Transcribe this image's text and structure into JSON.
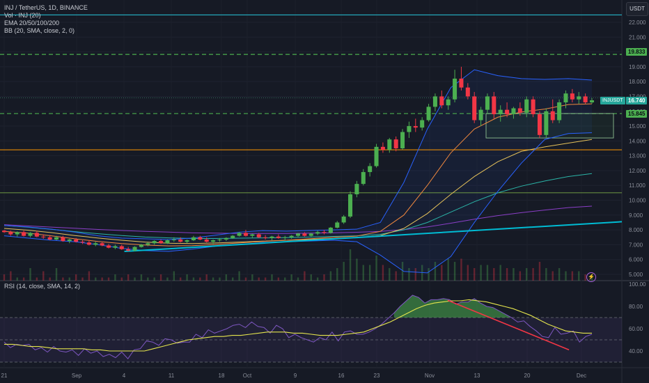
{
  "header": {
    "title": "INJ / TetherUS, 1D, BINANCE",
    "indicators": [
      "Vol · INJ (20)",
      "EMA 20/50/100/200",
      "BB (20, SMA, close, 2, 0)"
    ],
    "rsi_label": "RSI (14, close, SMA, 14, 2)",
    "currency": "USDT"
  },
  "price_tags": {
    "resistance_top": "19.833",
    "current_symbol": "INJUSDT",
    "current_price": "16.740",
    "support": "15.845"
  },
  "colors": {
    "background": "#161a25",
    "up": "#4caf50",
    "down": "#f23645",
    "ema20": "#f0883e",
    "ema50": "#e6c25a",
    "ema100": "#2bb5a8",
    "ema200": "#8b3fc8",
    "trendline": "#00bcd4",
    "bb": "#2962ff",
    "rsi": "#7e57c2",
    "rsi_ma": "#e6e64d",
    "rsi_trend": "#f23645",
    "level_green": "#4caf50",
    "level_orange": "#ff9800"
  },
  "chart_data": [
    {
      "type": "candlestick",
      "title": "INJ / TetherUS, 1D, BINANCE",
      "yaxis_ticks": [
        "22.000",
        "21.000",
        "20.000",
        "19.000",
        "18.000",
        "17.000",
        "16.000",
        "15.000",
        "14.000",
        "13.000",
        "12.000",
        "11.000",
        "10.000",
        "9.000",
        "8.000",
        "7.000",
        "6.000",
        "5.000"
      ],
      "xaxis_ticks": [
        "21",
        "Sep",
        "4",
        "11",
        "18",
        "Oct",
        "9",
        "16",
        "23",
        "Nov",
        "13",
        "20",
        "Dec"
      ],
      "ylim": [
        5,
        22.8
      ],
      "horizontal_levels": [
        19.833,
        15.845,
        13.4,
        10.5,
        22.5
      ],
      "candles": [
        [
          7.95,
          8.0,
          7.8,
          7.85
        ],
        [
          7.85,
          7.95,
          7.6,
          7.7
        ],
        [
          7.7,
          7.9,
          7.55,
          7.85
        ],
        [
          7.85,
          7.95,
          7.55,
          7.6
        ],
        [
          7.6,
          7.85,
          7.5,
          7.8
        ],
        [
          7.8,
          7.95,
          7.5,
          7.55
        ],
        [
          7.55,
          7.7,
          7.4,
          7.5
        ],
        [
          7.5,
          7.65,
          7.3,
          7.35
        ],
        [
          7.35,
          7.6,
          7.3,
          7.5
        ],
        [
          7.5,
          7.6,
          7.2,
          7.25
        ],
        [
          7.25,
          7.4,
          7.1,
          7.35
        ],
        [
          7.35,
          7.45,
          7.15,
          7.2
        ],
        [
          7.2,
          7.3,
          7.05,
          7.15
        ],
        [
          7.15,
          7.3,
          6.95,
          7.0
        ],
        [
          7.0,
          7.2,
          6.9,
          7.1
        ],
        [
          7.1,
          7.2,
          6.9,
          6.95
        ],
        [
          6.95,
          7.05,
          6.75,
          6.8
        ],
        [
          6.8,
          7.0,
          6.7,
          6.9
        ],
        [
          6.9,
          7.0,
          6.65,
          6.7
        ],
        [
          6.7,
          6.85,
          6.55,
          6.6
        ],
        [
          6.6,
          6.9,
          6.55,
          6.85
        ],
        [
          6.85,
          7.05,
          6.8,
          7.0
        ],
        [
          7.0,
          7.15,
          6.9,
          7.1
        ],
        [
          7.1,
          7.3,
          7.0,
          7.25
        ],
        [
          7.25,
          7.35,
          7.05,
          7.1
        ],
        [
          7.1,
          7.35,
          7.05,
          7.3
        ],
        [
          7.3,
          7.5,
          7.2,
          7.35
        ],
        [
          7.35,
          7.5,
          7.15,
          7.2
        ],
        [
          7.2,
          7.35,
          7.1,
          7.3
        ],
        [
          7.3,
          7.6,
          7.25,
          7.5
        ],
        [
          7.5,
          7.6,
          7.3,
          7.35
        ],
        [
          7.35,
          7.5,
          7.15,
          7.2
        ],
        [
          7.2,
          7.35,
          7.05,
          7.3
        ],
        [
          7.3,
          7.45,
          7.2,
          7.35
        ],
        [
          7.35,
          7.5,
          7.25,
          7.45
        ],
        [
          7.45,
          7.65,
          7.4,
          7.6
        ],
        [
          7.6,
          7.85,
          7.55,
          7.8
        ],
        [
          7.8,
          8.0,
          7.55,
          7.6
        ],
        [
          7.6,
          7.75,
          7.45,
          7.7
        ],
        [
          7.7,
          7.8,
          7.45,
          7.5
        ],
        [
          7.5,
          7.65,
          7.35,
          7.45
        ],
        [
          7.45,
          7.6,
          7.3,
          7.55
        ],
        [
          7.55,
          7.7,
          7.4,
          7.45
        ],
        [
          7.45,
          7.6,
          7.3,
          7.5
        ],
        [
          7.5,
          7.65,
          7.4,
          7.6
        ],
        [
          7.6,
          7.8,
          7.5,
          7.75
        ],
        [
          7.75,
          7.85,
          7.55,
          7.6
        ],
        [
          7.6,
          7.8,
          7.55,
          7.75
        ],
        [
          7.75,
          7.95,
          7.65,
          7.85
        ],
        [
          7.85,
          8.0,
          7.7,
          7.8
        ],
        [
          7.8,
          8.2,
          7.75,
          8.15
        ],
        [
          8.15,
          8.6,
          8.1,
          8.5
        ],
        [
          8.5,
          9.0,
          8.4,
          8.9
        ],
        [
          8.9,
          10.6,
          8.8,
          10.4
        ],
        [
          10.4,
          11.3,
          10.2,
          11.1
        ],
        [
          11.1,
          12.1,
          11.0,
          11.9
        ],
        [
          11.9,
          12.5,
          11.6,
          12.3
        ],
        [
          12.3,
          13.8,
          12.2,
          13.6
        ],
        [
          13.6,
          13.9,
          13.2,
          13.4
        ],
        [
          13.4,
          14.2,
          13.2,
          14.1
        ],
        [
          14.1,
          14.3,
          13.3,
          13.5
        ],
        [
          13.5,
          14.8,
          13.4,
          14.6
        ],
        [
          14.6,
          15.3,
          14.2,
          15.0
        ],
        [
          15.0,
          15.5,
          14.6,
          14.9
        ],
        [
          14.9,
          15.6,
          14.7,
          15.4
        ],
        [
          15.4,
          16.5,
          15.3,
          16.3
        ],
        [
          16.3,
          17.2,
          16.0,
          17.0
        ],
        [
          17.0,
          17.4,
          16.2,
          16.4
        ],
        [
          16.4,
          17.0,
          16.1,
          16.8
        ],
        [
          16.8,
          18.8,
          16.6,
          18.2
        ],
        [
          18.2,
          19.0,
          17.4,
          17.6
        ],
        [
          17.6,
          17.9,
          16.8,
          17.0
        ],
        [
          17.0,
          17.3,
          15.2,
          15.4
        ],
        [
          15.4,
          16.3,
          15.0,
          16.1
        ],
        [
          16.1,
          17.2,
          15.8,
          17.0
        ],
        [
          17.0,
          17.3,
          15.5,
          15.8
        ],
        [
          15.8,
          16.4,
          15.3,
          16.1
        ],
        [
          16.1,
          16.6,
          15.6,
          15.8
        ],
        [
          15.8,
          16.3,
          15.5,
          16.2
        ],
        [
          16.2,
          16.6,
          15.7,
          15.9
        ],
        [
          15.9,
          17.0,
          15.6,
          16.8
        ],
        [
          16.8,
          17.0,
          15.6,
          15.8
        ],
        [
          15.8,
          16.0,
          14.2,
          14.4
        ],
        [
          14.4,
          16.2,
          14.2,
          16.0
        ],
        [
          16.0,
          16.8,
          15.2,
          15.4
        ],
        [
          15.4,
          16.8,
          15.2,
          16.6
        ],
        [
          16.6,
          17.4,
          16.2,
          17.2
        ],
        [
          17.2,
          17.5,
          16.6,
          16.8
        ],
        [
          16.8,
          17.3,
          16.5,
          17.0
        ],
        [
          17.0,
          17.2,
          16.5,
          16.6
        ],
        [
          16.6,
          16.9,
          16.5,
          16.74
        ]
      ],
      "ema20": [
        7.9,
        7.78,
        7.6,
        7.4,
        7.22,
        7.08,
        6.98,
        6.92,
        6.94,
        7.02,
        7.12,
        7.22,
        7.3,
        7.4,
        7.5,
        7.58,
        7.9,
        9.0,
        11.0,
        13.2,
        14.8,
        15.6,
        15.95,
        16.15,
        16.45,
        16.5
      ],
      "ema50": [
        8.1,
        7.98,
        7.82,
        7.62,
        7.45,
        7.3,
        7.18,
        7.1,
        7.08,
        7.12,
        7.18,
        7.24,
        7.3,
        7.36,
        7.42,
        7.48,
        7.62,
        8.1,
        9.1,
        10.4,
        11.6,
        12.6,
        13.3,
        13.6,
        13.85,
        14.1
      ],
      "ema100": [
        8.3,
        8.18,
        8.04,
        7.88,
        7.74,
        7.62,
        7.52,
        7.46,
        7.42,
        7.42,
        7.44,
        7.46,
        7.48,
        7.52,
        7.56,
        7.6,
        7.7,
        8.0,
        8.5,
        9.2,
        9.9,
        10.5,
        10.95,
        11.3,
        11.6,
        11.8
      ],
      "ema200": [
        8.35,
        8.27,
        8.19,
        8.11,
        8.03,
        7.96,
        7.9,
        7.85,
        7.8,
        7.78,
        7.76,
        7.76,
        7.76,
        7.78,
        7.8,
        7.84,
        7.9,
        8.02,
        8.2,
        8.45,
        8.72,
        8.96,
        9.16,
        9.34,
        9.5,
        9.6
      ],
      "bb_upper": [
        8.3,
        8.2,
        8.05,
        7.85,
        7.6,
        7.45,
        7.4,
        7.35,
        7.45,
        7.65,
        7.85,
        7.95,
        7.92,
        7.96,
        8.0,
        8.05,
        8.5,
        11.2,
        14.8,
        17.6,
        18.8,
        18.4,
        18.2,
        18.15,
        18.2,
        18.1
      ],
      "bb_lower": [
        7.6,
        7.45,
        7.3,
        7.2,
        7.0,
        6.75,
        6.6,
        6.55,
        6.7,
        6.9,
        7.0,
        7.15,
        7.2,
        7.25,
        7.3,
        7.2,
        6.3,
        5.2,
        5.1,
        6.2,
        8.5,
        10.6,
        12.5,
        14.1,
        14.5,
        14.55
      ],
      "trendline": [
        [
          0.2,
          6.55
        ],
        [
          1.0,
          8.55
        ]
      ],
      "volume": [
        2,
        3,
        1,
        1,
        4,
        1,
        3,
        1,
        4,
        1,
        1,
        2,
        1,
        3,
        1,
        1,
        1,
        2,
        1,
        2,
        1,
        2,
        1,
        1,
        2,
        1,
        3,
        1,
        2,
        1,
        1,
        2,
        1,
        1,
        2,
        1,
        3,
        1,
        2,
        1,
        1,
        2,
        1,
        1,
        2,
        1,
        3,
        2,
        1,
        2,
        3,
        4,
        6,
        10,
        7,
        5,
        5,
        8,
        5,
        4,
        3,
        6,
        4,
        4,
        5,
        4,
        6,
        5,
        7,
        6,
        7,
        5,
        4,
        5,
        5,
        4,
        5,
        4,
        4,
        3,
        4,
        4,
        6,
        4,
        3,
        4,
        3,
        3,
        3,
        2,
        2
      ]
    },
    {
      "type": "line",
      "title": "RSI (14, close, SMA, 14, 2)",
      "yaxis_ticks": [
        "100.00",
        "80.00",
        "60.00",
        "40.00"
      ],
      "ylim": [
        30,
        100
      ],
      "levels": [
        70,
        50,
        30
      ],
      "rsi": [
        48,
        43,
        46,
        45,
        46,
        41,
        43,
        39,
        44,
        40,
        39,
        41,
        36,
        42,
        38,
        40,
        35,
        37,
        34,
        39,
        33,
        41,
        42,
        49,
        48,
        45,
        51,
        50,
        47,
        48,
        48,
        55,
        52,
        59,
        56,
        58,
        60,
        63,
        64,
        61,
        66,
        62,
        61,
        56,
        63,
        60,
        52,
        55,
        52,
        50,
        48,
        52,
        50,
        57,
        49,
        57,
        58,
        55,
        55,
        57,
        60,
        64,
        69,
        74,
        80,
        85,
        90,
        88,
        83,
        86,
        86,
        87,
        86,
        82,
        84,
        84,
        87,
        83,
        80,
        79,
        76,
        73,
        70,
        66,
        67,
        62,
        58,
        53,
        52,
        61,
        55,
        56,
        58,
        48,
        53,
        55
      ],
      "rsi_ma": [
        46,
        46,
        45,
        44,
        44,
        43,
        42,
        42,
        42,
        42,
        41,
        41,
        40,
        40,
        40,
        40,
        40,
        42,
        44,
        46,
        48,
        50,
        51,
        52,
        53,
        53,
        54,
        54,
        55,
        56,
        57,
        57,
        57,
        56,
        56,
        55,
        54,
        54,
        54,
        55,
        56,
        57,
        60,
        63,
        66,
        70,
        74,
        78,
        81,
        83,
        84,
        85,
        85,
        86,
        85,
        84,
        82,
        80,
        78,
        75,
        72,
        68,
        64,
        61,
        58,
        57,
        56,
        56
      ],
      "rsi_trendline": [
        [
          0.72,
          85.5
        ],
        [
          0.915,
          41
        ]
      ]
    }
  ]
}
